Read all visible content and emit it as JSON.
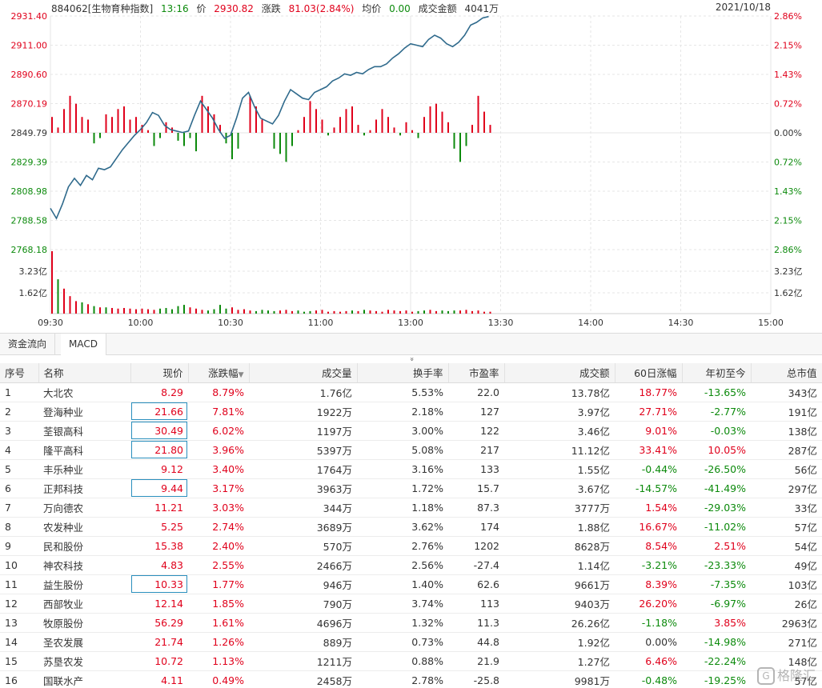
{
  "header": {
    "code_name": "884062[生物育种指数]",
    "time": "13:16",
    "price_label": "价",
    "price": "2930.82",
    "change_label": "涨跌",
    "change": "81.03(2.84%)",
    "avg_label": "均价",
    "avg": "0.00",
    "amount_label": "成交金额",
    "amount": "4041万",
    "date": "2021/10/18"
  },
  "axes": {
    "left_price_ticks": [
      "2931.40",
      "2911.00",
      "2890.60",
      "2870.19",
      "2849.79",
      "2829.39",
      "2808.98",
      "2788.58",
      "2768.18"
    ],
    "right_pct_ticks": [
      "2.86%",
      "2.15%",
      "1.43%",
      "0.72%",
      "0.00%",
      "0.72%",
      "1.43%",
      "2.15%",
      "2.86%"
    ],
    "volume_ticks": [
      "3.23亿",
      "1.62亿"
    ],
    "time_ticks": [
      "09:30",
      "10:00",
      "10:30",
      "11:00",
      "13:00",
      "13:30",
      "14:00",
      "14:30",
      "15:00"
    ]
  },
  "colors": {
    "up": "#e0001b",
    "down": "#0c8a0c",
    "line": "#2f6a8c",
    "grid": "#e6e6e6"
  },
  "chart_data": {
    "type": "line",
    "title": "",
    "xlabel": "",
    "ylabel": "",
    "ylim": [
      2768.18,
      2931.4
    ],
    "base": 2849.79,
    "x": [
      0,
      2,
      4,
      6,
      8,
      10,
      12,
      14,
      16,
      18,
      20,
      22,
      24,
      26,
      28,
      30,
      32,
      34,
      36,
      38,
      40,
      42,
      44,
      46,
      48,
      50,
      52,
      54,
      56,
      58,
      60,
      62,
      64,
      66,
      68,
      70,
      72,
      74,
      76,
      78,
      80,
      82,
      84,
      86,
      88,
      90,
      92,
      94,
      96,
      98,
      100,
      102,
      104,
      106,
      108,
      110,
      112,
      114,
      116,
      118,
      120,
      122,
      124,
      126,
      128,
      130,
      132,
      134,
      136,
      138,
      140,
      142,
      144,
      146
    ],
    "series": [
      {
        "values": [
          2797,
          2790,
          2800,
          2812,
          2818,
          2813,
          2820,
          2817,
          2825,
          2824,
          2826,
          2832,
          2838,
          2843,
          2848,
          2852,
          2857,
          2864,
          2862,
          2855,
          2852,
          2851,
          2850,
          2851,
          2862,
          2872,
          2866,
          2860,
          2852,
          2846,
          2848,
          2860,
          2874,
          2878,
          2868,
          2860,
          2858,
          2856,
          2862,
          2872,
          2880,
          2877,
          2874,
          2873,
          2878,
          2880,
          2882,
          2886,
          2888,
          2891,
          2890,
          2892,
          2891,
          2894,
          2896,
          2896,
          2898,
          2902,
          2905,
          2909,
          2912,
          2911,
          2910,
          2915,
          2918,
          2916,
          2912,
          2910,
          2913,
          2918,
          2925,
          2927,
          2930,
          2931
        ]
      }
    ],
    "flow_bars": [
      6,
      2,
      9,
      14,
      11,
      6,
      5,
      -4,
      -2,
      7,
      6,
      9,
      10,
      5,
      6,
      3,
      1,
      -5,
      -2,
      4,
      2,
      -3,
      -5,
      -2,
      -7,
      14,
      10,
      7,
      3,
      -4,
      -10,
      -6,
      0,
      14,
      10,
      5,
      0,
      -6,
      -8,
      -11,
      -5,
      1,
      6,
      12,
      9,
      5,
      -1,
      2,
      6,
      9,
      10,
      3,
      -1,
      1,
      5,
      9,
      6,
      2,
      -1,
      4,
      1,
      -2,
      6,
      10,
      11,
      8,
      4,
      -6,
      -11,
      -5,
      3,
      14,
      8,
      3
    ],
    "volume_bars": [
      100,
      55,
      40,
      28,
      20,
      18,
      15,
      12,
      10,
      10,
      9,
      8,
      9,
      8,
      7,
      8,
      7,
      6,
      8,
      9,
      7,
      12,
      14,
      10,
      8,
      6,
      5,
      7,
      14,
      8,
      10,
      6,
      7,
      5,
      4,
      6,
      5,
      4,
      5,
      6,
      4,
      5,
      3,
      4,
      5,
      6,
      3,
      4,
      3,
      4,
      5,
      4,
      6,
      5,
      4,
      3,
      6,
      5,
      4,
      5,
      3,
      4,
      5,
      6,
      4,
      5,
      4,
      5,
      5,
      6,
      4,
      5,
      3,
      3
    ]
  },
  "tabs": [
    {
      "label": "资金流向"
    },
    {
      "label": "MACD"
    }
  ],
  "collapse_glyph": "»",
  "table": {
    "columns": [
      "序号",
      "名称",
      "现价",
      "涨跌幅",
      "成交量",
      "换手率",
      "市盈率",
      "成交额",
      "60日涨幅",
      "年初至今",
      "总市值"
    ],
    "sort_glyph": "▼",
    "rows": [
      [
        "1",
        "大北农",
        "8.29",
        "8.79%",
        "1.76亿",
        "5.53%",
        "22.0",
        "13.78亿",
        "18.77%",
        "-13.65%",
        "343亿"
      ],
      [
        "2",
        "登海种业",
        "21.66",
        "7.81%",
        "1922万",
        "2.18%",
        "127",
        "3.97亿",
        "27.71%",
        "-2.77%",
        "191亿"
      ],
      [
        "3",
        "荃银高科",
        "30.49",
        "6.02%",
        "1197万",
        "3.00%",
        "122",
        "3.46亿",
        "9.01%",
        "-0.03%",
        "138亿"
      ],
      [
        "4",
        "隆平高科",
        "21.80",
        "3.96%",
        "5397万",
        "5.08%",
        "217",
        "11.12亿",
        "33.41%",
        "10.05%",
        "287亿"
      ],
      [
        "5",
        "丰乐种业",
        "9.12",
        "3.40%",
        "1764万",
        "3.16%",
        "133",
        "1.55亿",
        "-0.44%",
        "-26.50%",
        "56亿"
      ],
      [
        "6",
        "正邦科技",
        "9.44",
        "3.17%",
        "3963万",
        "1.72%",
        "15.7",
        "3.67亿",
        "-14.57%",
        "-41.49%",
        "297亿"
      ],
      [
        "7",
        "万向德农",
        "11.21",
        "3.03%",
        "344万",
        "1.18%",
        "87.3",
        "3777万",
        "1.54%",
        "-29.03%",
        "33亿"
      ],
      [
        "8",
        "农发种业",
        "5.25",
        "2.74%",
        "3689万",
        "3.62%",
        "174",
        "1.88亿",
        "16.67%",
        "-11.02%",
        "57亿"
      ],
      [
        "9",
        "民和股份",
        "15.38",
        "2.40%",
        "570万",
        "2.76%",
        "1202",
        "8628万",
        "8.54%",
        "2.51%",
        "54亿"
      ],
      [
        "10",
        "神农科技",
        "4.83",
        "2.55%",
        "2466万",
        "2.56%",
        "-27.4",
        "1.14亿",
        "-3.21%",
        "-23.33%",
        "49亿"
      ],
      [
        "11",
        "益生股份",
        "10.33",
        "1.77%",
        "946万",
        "1.40%",
        "62.6",
        "9661万",
        "8.39%",
        "-7.35%",
        "103亿"
      ],
      [
        "12",
        "西部牧业",
        "12.14",
        "1.85%",
        "790万",
        "3.74%",
        "113",
        "9403万",
        "26.20%",
        "-6.97%",
        "26亿"
      ],
      [
        "13",
        "牧原股份",
        "56.29",
        "1.61%",
        "4696万",
        "1.32%",
        "11.3",
        "26.26亿",
        "-1.18%",
        "3.85%",
        "2963亿"
      ],
      [
        "14",
        "圣农发展",
        "21.74",
        "1.26%",
        "889万",
        "0.73%",
        "44.8",
        "1.92亿",
        "0.00%",
        "-14.98%",
        "271亿"
      ],
      [
        "15",
        "苏垦农发",
        "10.72",
        "1.13%",
        "1211万",
        "0.88%",
        "21.9",
        "1.27亿",
        "6.46%",
        "-22.24%",
        "148亿"
      ],
      [
        "16",
        "国联水产",
        "4.11",
        "0.49%",
        "2458万",
        "2.78%",
        "-25.8",
        "9981万",
        "-0.48%",
        "-19.25%",
        "57亿"
      ]
    ],
    "boxed_price_rows": [
      1,
      2,
      3,
      5,
      10
    ]
  },
  "watermark": {
    "logo_text": "G",
    "text": "格隆汇"
  }
}
